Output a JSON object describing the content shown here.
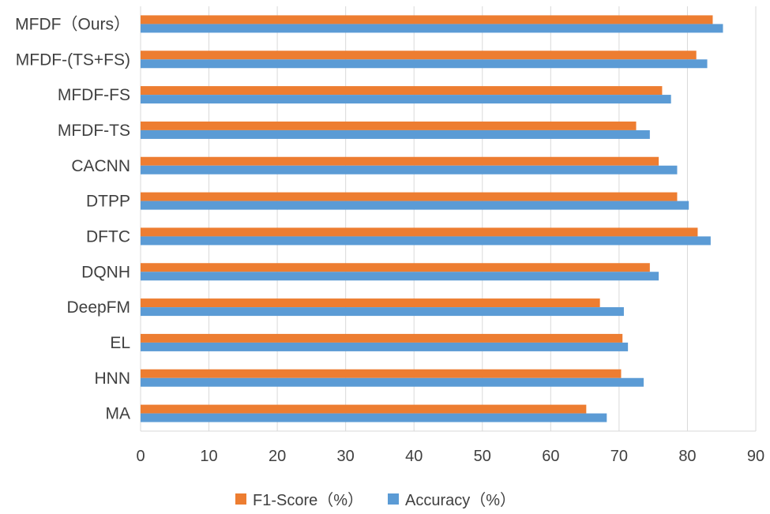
{
  "chart_data": {
    "type": "bar",
    "orientation": "horizontal",
    "categories": [
      "MFDF（Ours）",
      "MFDF-(TS+FS)",
      "MFDF-FS",
      "MFDF-TS",
      "CACNN",
      "DTPP",
      "DFTC",
      "DQNH",
      "DeepFM",
      "EL",
      "HNN",
      "MA"
    ],
    "series": [
      {
        "name": "F1-Score（%）",
        "color": "#ED7D31",
        "values": [
          83.7,
          81.3,
          76.3,
          72.5,
          75.8,
          78.5,
          81.5,
          74.5,
          67.2,
          70.5,
          70.3,
          65.2
        ]
      },
      {
        "name": "Accuracy（%）",
        "color": "#5B9BD5",
        "values": [
          85.2,
          82.9,
          77.6,
          74.5,
          78.5,
          80.2,
          83.4,
          75.8,
          70.7,
          71.3,
          73.6,
          68.2
        ]
      }
    ],
    "xlim": [
      0,
      90
    ],
    "xticks": [
      "0",
      "10",
      "20",
      "30",
      "40",
      "50",
      "60",
      "70",
      "80",
      "90"
    ],
    "grid": "vertical",
    "legend_position": "bottom",
    "title": "",
    "xlabel": "",
    "ylabel": ""
  }
}
